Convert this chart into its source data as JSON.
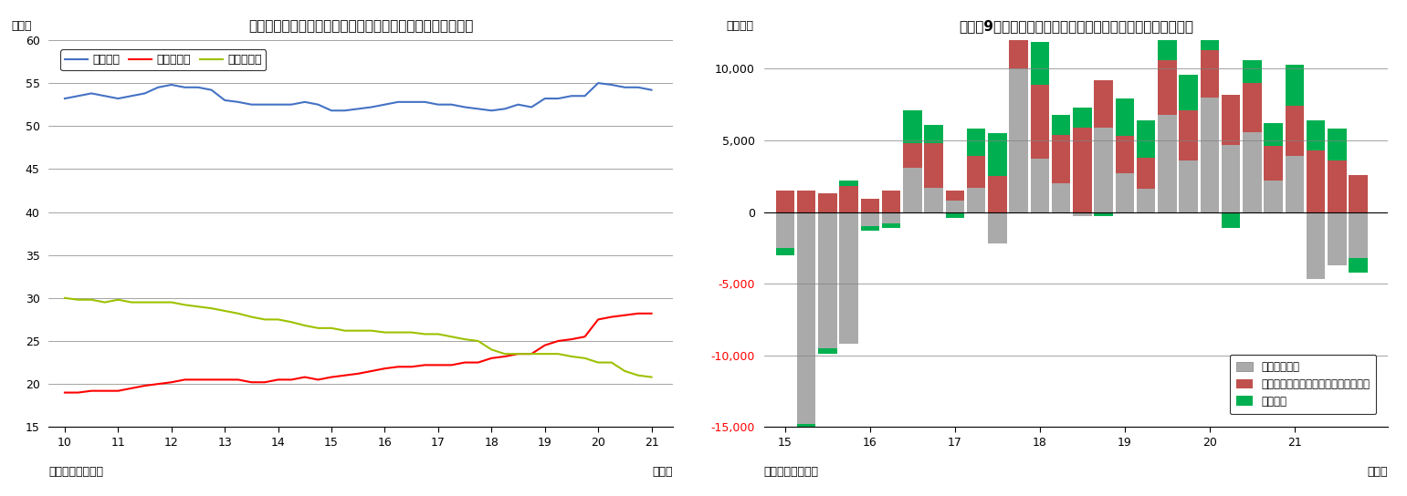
{
  "chart8": {
    "title": "（図表８）流動性・定期性預金の個人金融資産に占める割合",
    "ylabel": "（％）",
    "xlabel": "（年）",
    "source": "（資料）日本銀行",
    "ylim": [
      15,
      60
    ],
    "yticks": [
      15,
      20,
      25,
      30,
      35,
      40,
      45,
      50,
      55,
      60
    ],
    "xticks": [
      10,
      11,
      12,
      13,
      14,
      15,
      16,
      17,
      18,
      19,
      20,
      21
    ],
    "series": {
      "現預金計": {
        "color": "#4472c4",
        "data_x": [
          10.0,
          10.25,
          10.5,
          10.75,
          11.0,
          11.25,
          11.5,
          11.75,
          12.0,
          12.25,
          12.5,
          12.75,
          13.0,
          13.25,
          13.5,
          13.75,
          14.0,
          14.25,
          14.5,
          14.75,
          15.0,
          15.25,
          15.5,
          15.75,
          16.0,
          16.25,
          16.5,
          16.75,
          17.0,
          17.25,
          17.5,
          17.75,
          18.0,
          18.25,
          18.5,
          18.75,
          19.0,
          19.25,
          19.5,
          19.75,
          20.0,
          20.25,
          20.5,
          20.75,
          21.0
        ],
        "data_y": [
          53.2,
          53.5,
          53.8,
          53.5,
          53.2,
          53.5,
          53.8,
          54.5,
          54.8,
          54.5,
          54.5,
          54.2,
          53.0,
          52.8,
          52.5,
          52.5,
          52.5,
          52.5,
          52.8,
          52.5,
          51.8,
          51.8,
          52.0,
          52.2,
          52.5,
          52.8,
          52.8,
          52.8,
          52.5,
          52.5,
          52.2,
          52.0,
          51.8,
          52.0,
          52.5,
          52.2,
          53.2,
          53.2,
          53.5,
          53.5,
          55.0,
          54.8,
          54.5,
          54.5,
          54.2
        ]
      },
      "流動性預金": {
        "color": "#ff0000",
        "data_x": [
          10.0,
          10.25,
          10.5,
          10.75,
          11.0,
          11.25,
          11.5,
          11.75,
          12.0,
          12.25,
          12.5,
          12.75,
          13.0,
          13.25,
          13.5,
          13.75,
          14.0,
          14.25,
          14.5,
          14.75,
          15.0,
          15.25,
          15.5,
          15.75,
          16.0,
          16.25,
          16.5,
          16.75,
          17.0,
          17.25,
          17.5,
          17.75,
          18.0,
          18.25,
          18.5,
          18.75,
          19.0,
          19.25,
          19.5,
          19.75,
          20.0,
          20.25,
          20.5,
          20.75,
          21.0
        ],
        "data_y": [
          19.0,
          19.0,
          19.2,
          19.2,
          19.2,
          19.5,
          19.8,
          20.0,
          20.2,
          20.5,
          20.5,
          20.5,
          20.5,
          20.5,
          20.2,
          20.2,
          20.5,
          20.5,
          20.8,
          20.5,
          20.8,
          21.0,
          21.2,
          21.5,
          21.8,
          22.0,
          22.0,
          22.2,
          22.2,
          22.2,
          22.5,
          22.5,
          23.0,
          23.2,
          23.5,
          23.5,
          24.5,
          25.0,
          25.2,
          25.5,
          27.5,
          27.8,
          28.0,
          28.2,
          28.2
        ]
      },
      "定期性預金": {
        "color": "#9dc100",
        "data_x": [
          10.0,
          10.25,
          10.5,
          10.75,
          11.0,
          11.25,
          11.5,
          11.75,
          12.0,
          12.25,
          12.5,
          12.75,
          13.0,
          13.25,
          13.5,
          13.75,
          14.0,
          14.25,
          14.5,
          14.75,
          15.0,
          15.25,
          15.5,
          15.75,
          16.0,
          16.25,
          16.5,
          16.75,
          17.0,
          17.25,
          17.5,
          17.75,
          18.0,
          18.25,
          18.5,
          18.75,
          19.0,
          19.25,
          19.5,
          19.75,
          20.0,
          20.25,
          20.5,
          20.75,
          21.0
        ],
        "data_y": [
          30.0,
          29.8,
          29.8,
          29.5,
          29.8,
          29.5,
          29.5,
          29.5,
          29.5,
          29.2,
          29.0,
          28.8,
          28.5,
          28.2,
          27.8,
          27.5,
          27.5,
          27.2,
          26.8,
          26.5,
          26.5,
          26.2,
          26.2,
          26.2,
          26.0,
          26.0,
          26.0,
          25.8,
          25.8,
          25.5,
          25.2,
          25.0,
          24.0,
          23.5,
          23.5,
          23.5,
          23.5,
          23.5,
          23.2,
          23.0,
          22.5,
          22.5,
          21.5,
          21.0,
          20.8
        ]
      }
    }
  },
  "chart9": {
    "title": "（図表9）外貨預金・投信（確定拠出年金内）・国債のフロー",
    "ylabel": "（億円）",
    "xlabel": "（年）",
    "source": "（資料）日本銀行",
    "ylim": [
      -15000,
      12000
    ],
    "yticks": [
      -15000,
      -10000,
      -5000,
      0,
      5000,
      10000
    ],
    "bar_width": 0.22,
    "x_positions": [
      15.0,
      15.25,
      15.5,
      15.75,
      16.0,
      16.25,
      16.5,
      16.75,
      17.0,
      17.25,
      17.5,
      17.75,
      18.0,
      18.25,
      18.5,
      18.75,
      19.0,
      19.25,
      19.5,
      19.75,
      20.0,
      20.25,
      20.5,
      20.75,
      21.0,
      21.25,
      21.5,
      21.75
    ],
    "xticks": [
      15,
      16,
      17,
      18,
      19,
      20,
      21
    ],
    "国債財投債": {
      "color": "#aaaaaa",
      "values": [
        -2500,
        -14800,
        -9500,
        -9200,
        -1000,
        -800,
        3100,
        1700,
        800,
        1700,
        -2200,
        10000,
        3700,
        2000,
        -300,
        5900,
        2700,
        1600,
        6800,
        3600,
        8000,
        4700,
        5600,
        2200,
        3900,
        -4700,
        -3700,
        -3200
      ]
    },
    "投資信託": {
      "color": "#c0504d",
      "values": [
        1500,
        1500,
        1300,
        1800,
        900,
        1500,
        1700,
        3100,
        700,
        2200,
        2500,
        2800,
        5200,
        3400,
        5900,
        3300,
        2600,
        2200,
        3800,
        3500,
        3300,
        3500,
        3400,
        2400,
        3500,
        4300,
        3600,
        2600
      ]
    },
    "外貨預金": {
      "color": "#00b050",
      "values": [
        -500,
        -700,
        -400,
        400,
        -300,
        -300,
        2300,
        1300,
        -400,
        1900,
        3000,
        2000,
        3000,
        1400,
        1400,
        -300,
        2600,
        2600,
        2400,
        2500,
        1700,
        -1100,
        1600,
        1600,
        2900,
        2100,
        2200,
        -1000
      ]
    },
    "legend_labels": [
      "国債・財投債",
      "投資信託受益証券（確定拠出年金内）",
      "外貨預金"
    ]
  }
}
